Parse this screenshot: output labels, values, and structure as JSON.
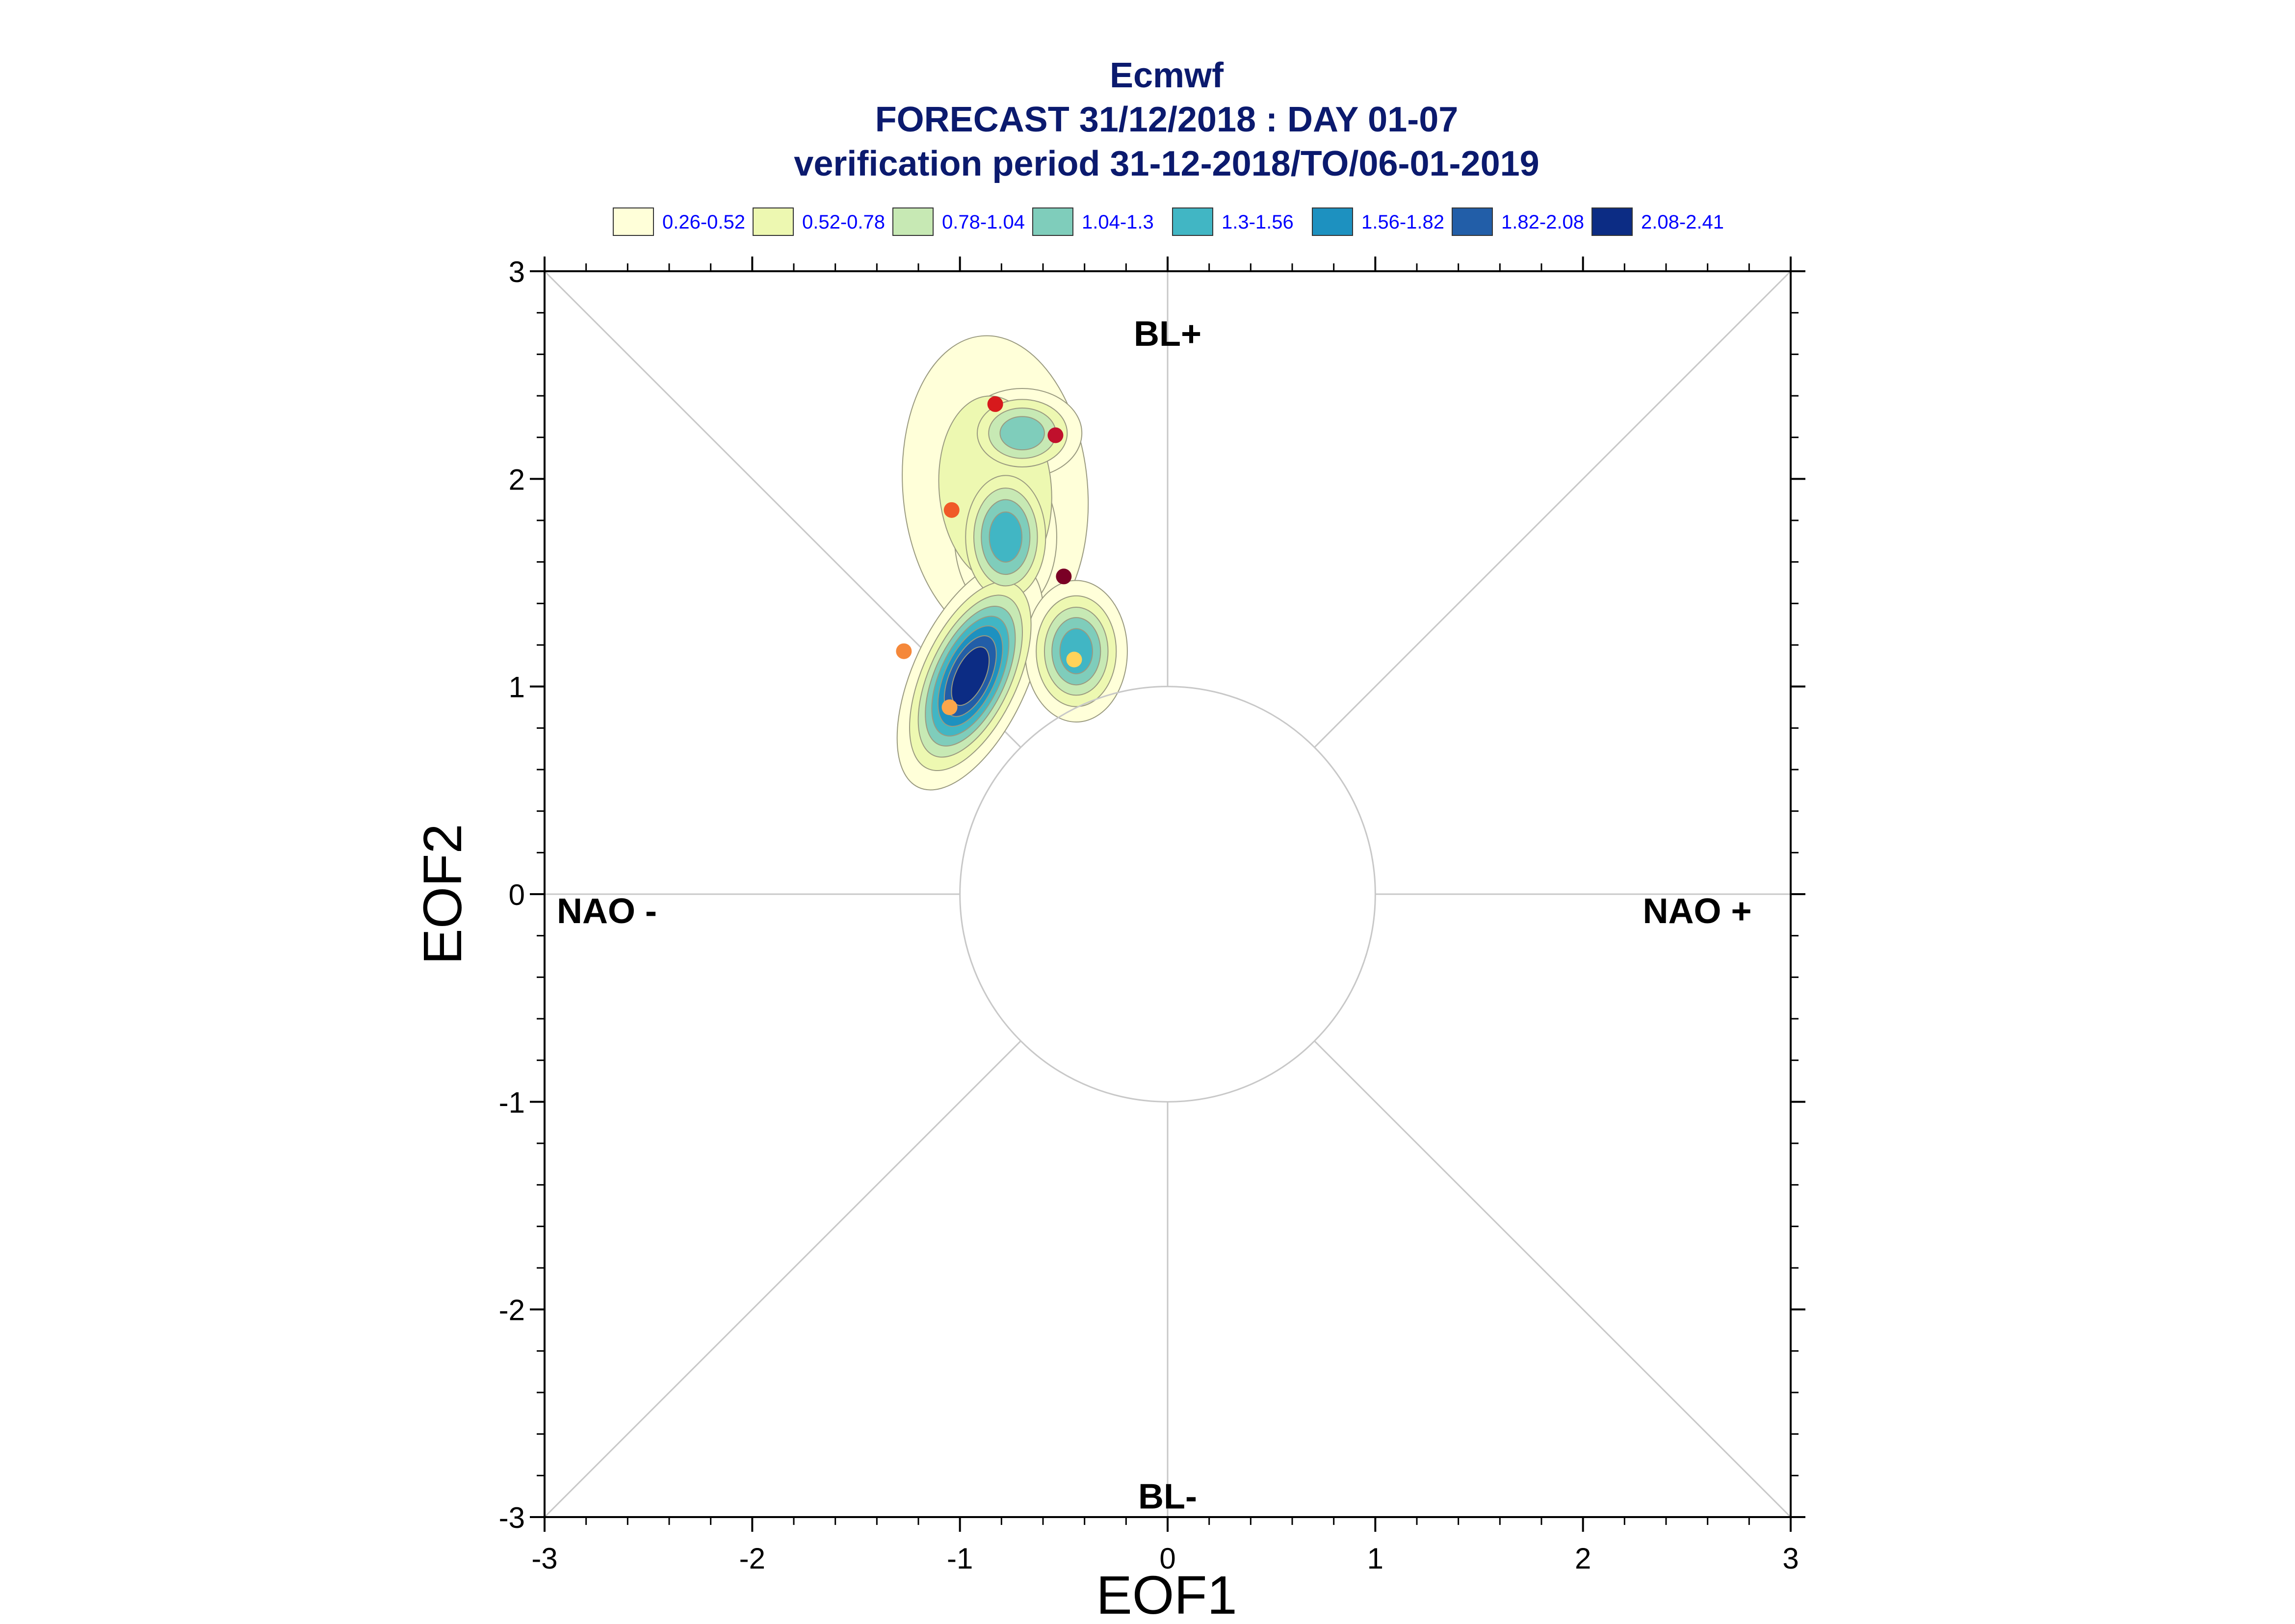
{
  "chart_data": {
    "type": "scatter",
    "title": "Ecmwf",
    "subtitle_lines": [
      "FORECAST 31/12/2018 : DAY 01-07",
      "verification period 31-12-2018/TO/06-01-2019"
    ],
    "xlabel": "EOF1",
    "ylabel": "EOF2",
    "xlim": [
      -3,
      3
    ],
    "ylim": [
      -3,
      3
    ],
    "x_ticks": [
      "-3",
      "-2",
      "-1",
      "0",
      "1",
      "2",
      "3"
    ],
    "y_ticks": [
      "-3",
      "-2",
      "-1",
      "0",
      "1",
      "2",
      "3"
    ],
    "grid": false,
    "legend_position": "top",
    "regime_labels": [
      {
        "text": "BL+",
        "x": 0,
        "y": 2.7
      },
      {
        "text": "BL-",
        "x": 0,
        "y": -2.9
      },
      {
        "text": "NAO -",
        "x": -2.7,
        "y": -0.08
      },
      {
        "text": "NAO +",
        "x": 2.55,
        "y": -0.08
      }
    ],
    "reference_circle_radius": 1,
    "legend": [
      {
        "label": "0.26-0.52",
        "color": "#ffffd9"
      },
      {
        "label": "0.52-0.78",
        "color": "#edf8b1"
      },
      {
        "label": "0.78-1.04",
        "color": "#c7e9b4"
      },
      {
        "label": "1.04-1.3",
        "color": "#7fcdbb"
      },
      {
        "label": "1.3-1.56",
        "color": "#41b6c4"
      },
      {
        "label": "1.56-1.82",
        "color": "#1d91c0"
      },
      {
        "label": "1.82-2.08",
        "color": "#225ea8"
      },
      {
        "label": "2.08-2.41",
        "color": "#0c2c84"
      }
    ],
    "density_clusters": [
      {
        "cx": -0.83,
        "cy": 1.95,
        "sx": 0.3,
        "sy": 0.5,
        "rot": -5,
        "peak": 0.78
      },
      {
        "cx": -0.7,
        "cy": 2.22,
        "sx": 0.16,
        "sy": 0.12,
        "rot": 0,
        "peak": 1.3
      },
      {
        "cx": -0.78,
        "cy": 1.72,
        "sx": 0.13,
        "sy": 0.2,
        "rot": 0,
        "peak": 1.56
      },
      {
        "cx": -0.95,
        "cy": 1.05,
        "sx": 0.13,
        "sy": 0.28,
        "rot": 25,
        "peak": 2.41
      },
      {
        "cx": -0.44,
        "cy": 1.17,
        "sx": 0.13,
        "sy": 0.18,
        "rot": 0,
        "peak": 1.56
      }
    ],
    "points": [
      {
        "x": -0.83,
        "y": 2.36,
        "color": "#d7191c"
      },
      {
        "x": -0.54,
        "y": 2.21,
        "color": "#c0102c"
      },
      {
        "x": -1.04,
        "y": 1.85,
        "color": "#f05a28"
      },
      {
        "x": -0.5,
        "y": 1.53,
        "color": "#7a0025"
      },
      {
        "x": -1.27,
        "y": 1.17,
        "color": "#f5883a"
      },
      {
        "x": -0.45,
        "y": 1.13,
        "color": "#ffd35a"
      },
      {
        "x": -1.05,
        "y": 0.9,
        "color": "#fba64a"
      }
    ]
  }
}
